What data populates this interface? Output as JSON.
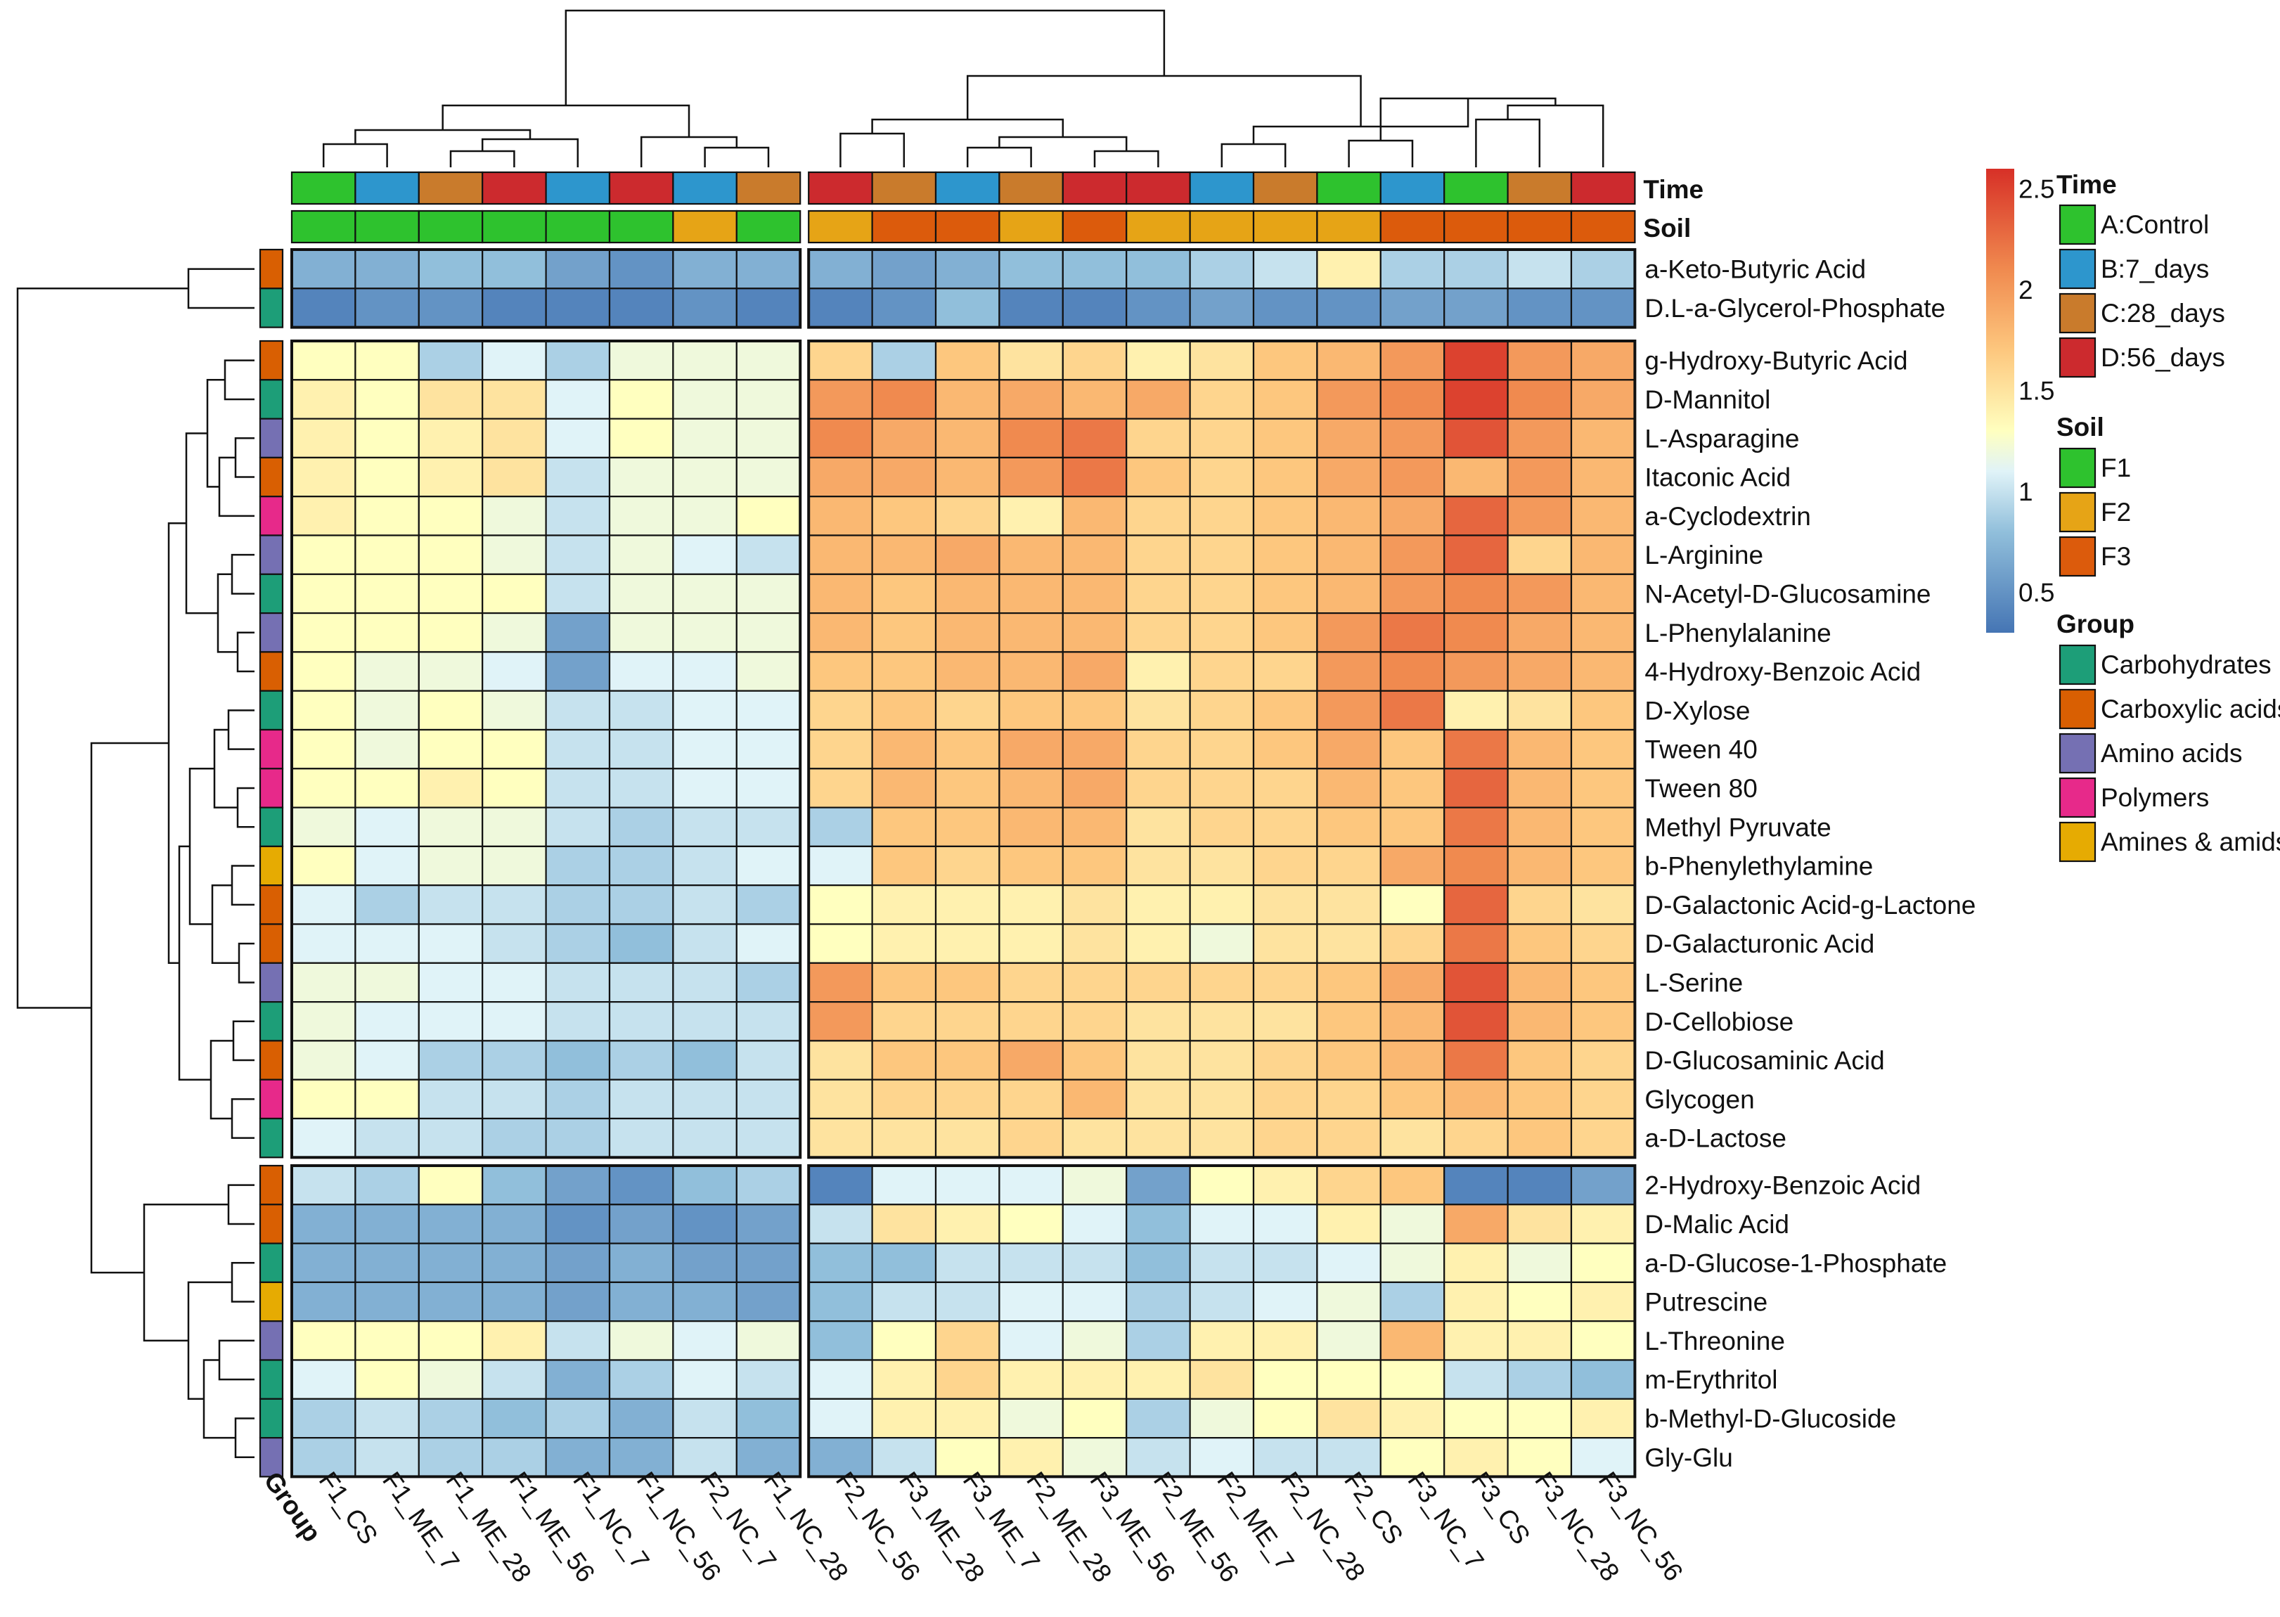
{
  "chart_data": {
    "type": "heatmap",
    "title": "",
    "columns": [
      "F1_CS",
      "F1_ME_7",
      "F1_ME_28",
      "F1_ME_56",
      "F1_NC_7",
      "F1_NC_56",
      "F2_NC_7",
      "F1_NC_28",
      "F2_NC_56",
      "F3_ME_28",
      "F3_ME_7",
      "F2_ME_28",
      "F3_ME_56",
      "F2_ME_56",
      "F2_ME_7",
      "F2_NC_28",
      "F2_CS",
      "F3_NC_7",
      "F3_CS",
      "F3_NC_28",
      "F3_NC_56"
    ],
    "column_groups": [
      8,
      13
    ],
    "row_blocks": [
      2,
      21,
      8
    ],
    "rows": [
      {
        "name": "a-Keto-Butyric Acid",
        "group": "Carboxylic acids",
        "values": [
          0.7,
          0.7,
          0.8,
          0.8,
          0.6,
          0.5,
          0.7,
          0.7,
          0.7,
          0.6,
          0.7,
          0.8,
          0.8,
          0.8,
          0.9,
          1.0,
          1.4,
          0.9,
          0.9,
          1.0,
          0.9
        ]
      },
      {
        "name": "D.L-a-Glycerol-Phosphate",
        "group": "Carbohydrates",
        "values": [
          0.4,
          0.5,
          0.5,
          0.4,
          0.4,
          0.4,
          0.5,
          0.4,
          0.4,
          0.5,
          0.8,
          0.4,
          0.4,
          0.5,
          0.6,
          0.5,
          0.5,
          0.6,
          0.6,
          0.5,
          0.5
        ]
      },
      {
        "name": "g-Hydroxy-Butyric Acid",
        "group": "Carboxylic acids",
        "values": [
          1.3,
          1.3,
          0.9,
          1.1,
          0.9,
          1.2,
          1.2,
          1.2,
          1.6,
          0.9,
          1.7,
          1.5,
          1.6,
          1.4,
          1.5,
          1.7,
          1.8,
          2.0,
          2.5,
          2.0,
          1.9
        ]
      },
      {
        "name": "D-Mannitol",
        "group": "Carbohydrates",
        "values": [
          1.4,
          1.3,
          1.5,
          1.5,
          1.1,
          1.3,
          1.2,
          1.2,
          2.0,
          2.1,
          1.8,
          1.9,
          1.8,
          1.9,
          1.6,
          1.7,
          2.0,
          2.1,
          2.5,
          2.1,
          1.9
        ]
      },
      {
        "name": "L-Asparagine",
        "group": "Amino acids",
        "values": [
          1.4,
          1.3,
          1.4,
          1.5,
          1.1,
          1.3,
          1.2,
          1.2,
          2.1,
          1.9,
          1.8,
          2.1,
          2.2,
          1.6,
          1.6,
          1.7,
          1.9,
          2.0,
          2.4,
          2.0,
          1.8
        ]
      },
      {
        "name": "Itaconic Acid",
        "group": "Carboxylic acids",
        "values": [
          1.4,
          1.3,
          1.4,
          1.5,
          1.0,
          1.2,
          1.2,
          1.2,
          1.9,
          1.9,
          1.8,
          2.0,
          2.2,
          1.7,
          1.6,
          1.7,
          1.9,
          2.0,
          1.8,
          2.0,
          1.8
        ]
      },
      {
        "name": "a-Cyclodextrin",
        "group": "Polymers",
        "values": [
          1.4,
          1.3,
          1.3,
          1.2,
          1.0,
          1.2,
          1.2,
          1.3,
          1.8,
          1.7,
          1.6,
          1.4,
          1.8,
          1.6,
          1.6,
          1.7,
          1.8,
          1.9,
          2.3,
          2.0,
          1.8
        ]
      },
      {
        "name": "L-Arginine",
        "group": "Amino acids",
        "values": [
          1.3,
          1.3,
          1.3,
          1.2,
          1.0,
          1.2,
          1.1,
          1.0,
          1.8,
          1.8,
          1.9,
          1.8,
          1.8,
          1.6,
          1.6,
          1.7,
          1.8,
          2.0,
          2.3,
          1.6,
          1.8
        ]
      },
      {
        "name": "N-Acetyl-D-Glucosamine",
        "group": "Carbohydrates",
        "values": [
          1.3,
          1.3,
          1.3,
          1.3,
          1.0,
          1.2,
          1.2,
          1.2,
          1.8,
          1.7,
          1.8,
          1.8,
          1.8,
          1.6,
          1.6,
          1.7,
          1.8,
          2.0,
          2.1,
          2.0,
          1.8
        ]
      },
      {
        "name": "L-Phenylalanine",
        "group": "Amino acids",
        "values": [
          1.3,
          1.3,
          1.3,
          1.2,
          0.6,
          1.2,
          1.2,
          1.2,
          1.8,
          1.7,
          1.8,
          1.8,
          1.8,
          1.6,
          1.6,
          1.7,
          2.0,
          2.2,
          2.1,
          1.9,
          1.8
        ]
      },
      {
        "name": "4-Hydroxy-Benzoic Acid",
        "group": "Carboxylic acids",
        "values": [
          1.3,
          1.2,
          1.2,
          1.1,
          0.6,
          1.1,
          1.1,
          1.2,
          1.7,
          1.7,
          1.8,
          1.8,
          1.9,
          1.4,
          1.6,
          1.6,
          2.0,
          2.1,
          2.0,
          1.9,
          1.8
        ]
      },
      {
        "name": "D-Xylose",
        "group": "Carbohydrates",
        "values": [
          1.3,
          1.2,
          1.3,
          1.2,
          1.0,
          1.0,
          1.1,
          1.1,
          1.6,
          1.7,
          1.6,
          1.7,
          1.7,
          1.5,
          1.6,
          1.7,
          2.0,
          2.2,
          1.4,
          1.5,
          1.7
        ]
      },
      {
        "name": "Tween 40",
        "group": "Polymers",
        "values": [
          1.3,
          1.2,
          1.3,
          1.3,
          1.0,
          1.0,
          1.1,
          1.1,
          1.6,
          1.8,
          1.7,
          1.9,
          1.9,
          1.6,
          1.6,
          1.7,
          1.9,
          1.7,
          2.2,
          1.8,
          1.7
        ]
      },
      {
        "name": "Tween 80",
        "group": "Polymers",
        "values": [
          1.3,
          1.3,
          1.4,
          1.3,
          1.0,
          1.0,
          1.1,
          1.1,
          1.6,
          1.8,
          1.7,
          1.8,
          1.9,
          1.6,
          1.6,
          1.6,
          1.8,
          1.7,
          2.3,
          1.8,
          1.7
        ]
      },
      {
        "name": "Methyl Pyruvate",
        "group": "Carbohydrates",
        "values": [
          1.2,
          1.1,
          1.2,
          1.2,
          1.0,
          0.9,
          1.0,
          1.0,
          0.9,
          1.7,
          1.7,
          1.8,
          1.8,
          1.5,
          1.6,
          1.6,
          1.7,
          1.7,
          2.2,
          1.8,
          1.7
        ]
      },
      {
        "name": "b-Phenylethylamine",
        "group": "Amines & amids",
        "values": [
          1.3,
          1.1,
          1.2,
          1.2,
          0.9,
          0.9,
          1.0,
          1.1,
          1.1,
          1.7,
          1.6,
          1.7,
          1.7,
          1.5,
          1.5,
          1.6,
          1.6,
          1.9,
          2.1,
          1.8,
          1.7
        ]
      },
      {
        "name": "D-Galactonic Acid-g-Lactone",
        "group": "Carboxylic acids",
        "values": [
          1.1,
          0.9,
          1.0,
          1.0,
          0.9,
          0.9,
          1.0,
          0.9,
          1.3,
          1.4,
          1.4,
          1.4,
          1.5,
          1.4,
          1.4,
          1.5,
          1.5,
          1.3,
          2.3,
          1.6,
          1.5
        ]
      },
      {
        "name": "D-Galacturonic Acid",
        "group": "Carboxylic acids",
        "values": [
          1.1,
          1.1,
          1.1,
          1.0,
          0.9,
          0.8,
          1.0,
          1.1,
          1.3,
          1.4,
          1.4,
          1.4,
          1.5,
          1.4,
          1.2,
          1.5,
          1.5,
          1.6,
          2.2,
          1.7,
          1.6
        ]
      },
      {
        "name": "L-Serine",
        "group": "Amino acids",
        "values": [
          1.2,
          1.2,
          1.1,
          1.1,
          1.0,
          1.0,
          1.0,
          0.9,
          2.0,
          1.7,
          1.7,
          1.6,
          1.6,
          1.6,
          1.6,
          1.6,
          1.7,
          1.9,
          2.4,
          1.8,
          1.7
        ]
      },
      {
        "name": "D-Cellobiose",
        "group": "Carbohydrates",
        "values": [
          1.2,
          1.1,
          1.1,
          1.1,
          1.0,
          1.0,
          1.0,
          1.0,
          2.0,
          1.6,
          1.6,
          1.6,
          1.6,
          1.5,
          1.5,
          1.5,
          1.7,
          1.8,
          2.4,
          1.8,
          1.7
        ]
      },
      {
        "name": "D-Glucosaminic Acid",
        "group": "Carboxylic acids",
        "values": [
          1.2,
          1.1,
          0.9,
          0.9,
          0.8,
          0.9,
          0.8,
          1.0,
          1.5,
          1.7,
          1.7,
          1.9,
          1.7,
          1.5,
          1.5,
          1.6,
          1.7,
          1.8,
          2.2,
          1.7,
          1.6
        ]
      },
      {
        "name": "Glycogen",
        "group": "Polymers",
        "values": [
          1.3,
          1.3,
          1.0,
          1.0,
          0.9,
          1.0,
          1.0,
          1.0,
          1.5,
          1.6,
          1.6,
          1.6,
          1.8,
          1.5,
          1.5,
          1.6,
          1.6,
          1.7,
          1.8,
          1.7,
          1.6
        ]
      },
      {
        "name": "a-D-Lactose",
        "group": "Carbohydrates",
        "values": [
          1.1,
          1.0,
          1.0,
          0.9,
          0.9,
          1.0,
          1.0,
          1.0,
          1.5,
          1.5,
          1.5,
          1.6,
          1.5,
          1.5,
          1.5,
          1.6,
          1.6,
          1.5,
          1.6,
          1.7,
          1.6
        ]
      },
      {
        "name": "2-Hydroxy-Benzoic Acid",
        "group": "Carboxylic acids",
        "values": [
          1.0,
          0.9,
          1.3,
          0.8,
          0.6,
          0.5,
          0.8,
          0.9,
          0.4,
          1.1,
          1.1,
          1.1,
          1.2,
          0.6,
          1.3,
          1.4,
          1.6,
          1.7,
          0.4,
          0.4,
          0.6
        ]
      },
      {
        "name": "D-Malic Acid",
        "group": "Carboxylic acids",
        "values": [
          0.7,
          0.7,
          0.7,
          0.7,
          0.5,
          0.6,
          0.5,
          0.6,
          1.0,
          1.5,
          1.4,
          1.3,
          1.1,
          0.8,
          1.1,
          1.1,
          1.4,
          1.2,
          1.9,
          1.5,
          1.4
        ]
      },
      {
        "name": "a-D-Glucose-1-Phosphate",
        "group": "Carbohydrates",
        "values": [
          0.7,
          0.7,
          0.7,
          0.7,
          0.6,
          0.7,
          0.6,
          0.6,
          0.8,
          0.8,
          1.0,
          1.0,
          1.0,
          0.8,
          1.0,
          1.0,
          1.1,
          1.2,
          1.4,
          1.2,
          1.3
        ]
      },
      {
        "name": "Putrescine",
        "group": "Amines & amids",
        "values": [
          0.7,
          0.7,
          0.7,
          0.7,
          0.6,
          0.7,
          0.7,
          0.6,
          0.8,
          1.0,
          1.0,
          1.1,
          1.1,
          0.9,
          1.0,
          1.1,
          1.2,
          0.9,
          1.4,
          1.3,
          1.4
        ]
      },
      {
        "name": "L-Threonine",
        "group": "Amino acids",
        "values": [
          1.3,
          1.3,
          1.3,
          1.4,
          1.0,
          1.2,
          1.1,
          1.2,
          0.8,
          1.3,
          1.6,
          1.1,
          1.2,
          0.9,
          1.4,
          1.4,
          1.2,
          1.8,
          1.4,
          1.4,
          1.3
        ]
      },
      {
        "name": "m-Erythritol",
        "group": "Carbohydrates",
        "values": [
          1.1,
          1.3,
          1.2,
          1.0,
          0.7,
          0.9,
          1.1,
          1.0,
          1.1,
          1.4,
          1.6,
          1.4,
          1.4,
          1.4,
          1.5,
          1.3,
          1.3,
          1.3,
          1.0,
          0.9,
          0.8
        ]
      },
      {
        "name": "b-Methyl-D-Glucoside",
        "group": "Carbohydrates",
        "values": [
          0.9,
          1.0,
          0.9,
          0.8,
          0.9,
          0.7,
          1.0,
          0.8,
          1.1,
          1.4,
          1.4,
          1.2,
          1.3,
          0.9,
          1.2,
          1.3,
          1.5,
          1.4,
          1.3,
          1.3,
          1.4
        ]
      },
      {
        "name": "Gly-Glu",
        "group": "Amino acids",
        "values": [
          0.9,
          1.0,
          0.9,
          0.9,
          0.7,
          0.7,
          1.0,
          0.7,
          0.7,
          1.0,
          1.3,
          1.4,
          1.2,
          1.0,
          1.1,
          1.0,
          1.0,
          1.3,
          1.4,
          1.3,
          1.1
        ]
      }
    ],
    "time_annotation": [
      "A:Control",
      "B:7_days",
      "C:28_days",
      "D:56_days",
      "B:7_days",
      "D:56_days",
      "B:7_days",
      "C:28_days",
      "D:56_days",
      "C:28_days",
      "B:7_days",
      "C:28_days",
      "D:56_days",
      "D:56_days",
      "B:7_days",
      "C:28_days",
      "A:Control",
      "B:7_days",
      "A:Control",
      "C:28_days",
      "D:56_days"
    ],
    "soil_annotation": [
      "F1",
      "F1",
      "F1",
      "F1",
      "F1",
      "F1",
      "F2",
      "F1",
      "F2",
      "F3",
      "F3",
      "F2",
      "F3",
      "F2",
      "F2",
      "F2",
      "F2",
      "F3",
      "F3",
      "F3",
      "F3"
    ],
    "color_scale": {
      "min": 0.3,
      "max": 2.6,
      "ticks": [
        2.5,
        2,
        1.5,
        1,
        0.5
      ],
      "stops": [
        {
          "v": 0.3,
          "c": "#4575b4"
        },
        {
          "v": 0.8,
          "c": "#91bfdb"
        },
        {
          "v": 1.1,
          "c": "#e0f3f8"
        },
        {
          "v": 1.3,
          "c": "#ffffbf"
        },
        {
          "v": 1.7,
          "c": "#fdc77e"
        },
        {
          "v": 2.1,
          "c": "#f08a4f"
        },
        {
          "v": 2.6,
          "c": "#d73027"
        }
      ]
    },
    "legend": {
      "time_title": "Time",
      "soil_title": "Soil",
      "group_title": "Group",
      "time_items": [
        {
          "label": "A:Control",
          "color": "#2ec22e"
        },
        {
          "label": "B:7_days",
          "color": "#2d96cd"
        },
        {
          "label": "C:28_days",
          "color": "#c97b2c"
        },
        {
          "label": "D:56_days",
          "color": "#cc2a2e"
        }
      ],
      "soil_items": [
        {
          "label": "F1",
          "color": "#2ec22e"
        },
        {
          "label": "F2",
          "color": "#e6a416"
        },
        {
          "label": "F3",
          "color": "#dc5b0c"
        }
      ],
      "group_items": [
        {
          "label": "Carbohydrates",
          "color": "#1d9e78"
        },
        {
          "label": "Carboxylic acids",
          "color": "#d95f02"
        },
        {
          "label": "Amino acids",
          "color": "#7570b3"
        },
        {
          "label": "Polymers",
          "color": "#e7298a"
        },
        {
          "label": "Amines & amids",
          "color": "#e6ab02"
        }
      ]
    },
    "annotation_labels": {
      "time": "Time",
      "soil": "Soil",
      "group": "Group"
    }
  }
}
